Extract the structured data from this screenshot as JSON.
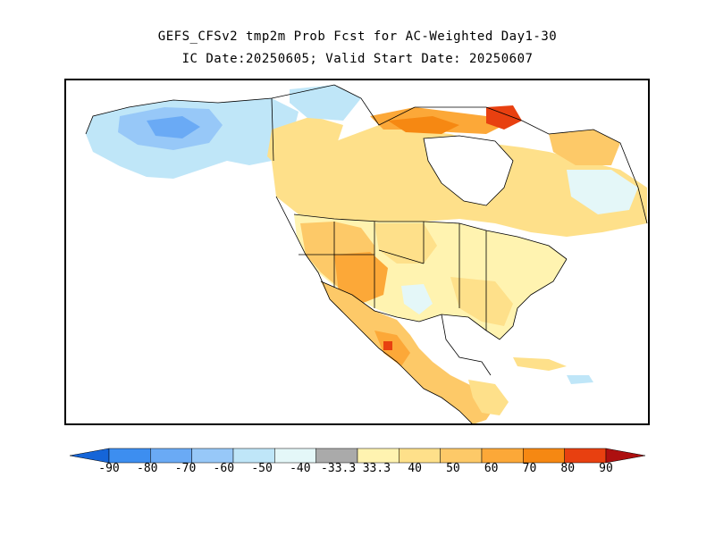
{
  "title": {
    "line1": "GEFS_CFSv2 tmp2m Prob Fcst for AC-Weighted Day1-30",
    "line2": "IC Date:20250605; Valid Start Date: 20250607"
  },
  "colorbar": {
    "labels": [
      "-90",
      "-80",
      "-70",
      "-60",
      "-50",
      "-40",
      "-33.3",
      "33.3",
      "40",
      "50",
      "60",
      "70",
      "80",
      "90"
    ],
    "colors": [
      "#1565d8",
      "#3d8ef0",
      "#6aaaf5",
      "#97c8f8",
      "#bfe6f8",
      "#e4f7f8",
      "#aaaaaa",
      "#fff3b0",
      "#fee08a",
      "#fdc968",
      "#fca838",
      "#f68812",
      "#e84010",
      "#ad1010"
    ]
  },
  "map": {
    "land_color": "#ffffff",
    "ocean_color": "#ffffff",
    "border_color": "#000000"
  }
}
